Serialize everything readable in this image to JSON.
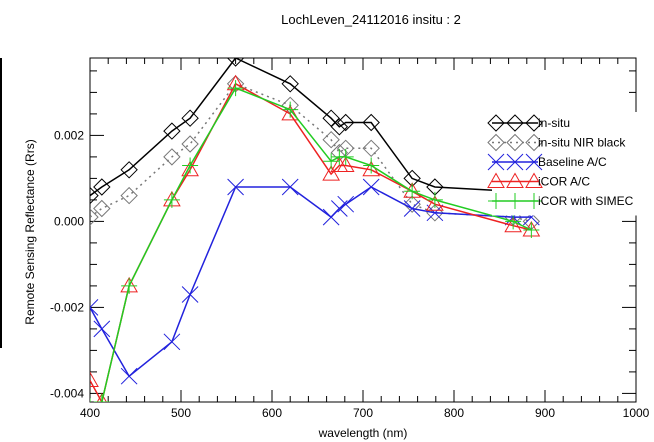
{
  "chart_data": {
    "type": "line",
    "title": "LochLeven_24112016 insitu : 2",
    "xlabel": "wavelength (nm)",
    "ylabel": "Remote Sensing Reflectance (Rrs)",
    "xlim": [
      400,
      1000
    ],
    "ylim": [
      -0.0042,
      0.0038
    ],
    "x_ticks": [
      400,
      500,
      600,
      700,
      800,
      900,
      1000
    ],
    "x_tick_labels": [
      "400",
      "500",
      "600",
      "700",
      "800",
      "900",
      "1000"
    ],
    "y_ticks": [
      -0.004,
      -0.002,
      0.0,
      0.002
    ],
    "y_tick_labels": [
      "-0.004",
      "-0.002",
      "0.000",
      "0.002"
    ],
    "grid": false,
    "legend_position": "right",
    "series": [
      {
        "name": "in-situ",
        "color": "#000000",
        "line": "solid",
        "marker": "diamond",
        "points": [
          [
            400,
            0.0006
          ],
          [
            413,
            0.0008
          ],
          [
            443,
            0.0012
          ],
          [
            490,
            0.0021
          ],
          [
            510,
            0.0024
          ],
          [
            560,
            0.0038
          ],
          [
            620,
            0.0032
          ],
          [
            665,
            0.0024
          ],
          [
            674,
            0.0022
          ],
          [
            681,
            0.0023
          ],
          [
            709,
            0.0023
          ],
          [
            754,
            0.001
          ],
          [
            779,
            0.0008
          ],
          [
            865,
            0.0007
          ],
          [
            885,
            0.0007
          ]
        ]
      },
      {
        "name": "in-situ NIR black",
        "color": "#777777",
        "line": "dotted",
        "marker": "diamond",
        "points": [
          [
            400,
            0.0001
          ],
          [
            413,
            0.0003
          ],
          [
            443,
            0.0006
          ],
          [
            490,
            0.0015
          ],
          [
            510,
            0.0018
          ],
          [
            560,
            0.0032
          ],
          [
            620,
            0.0027
          ],
          [
            665,
            0.0019
          ],
          [
            674,
            0.0016
          ],
          [
            681,
            0.0017
          ],
          [
            709,
            0.0017
          ],
          [
            754,
            0.0004
          ],
          [
            779,
            0.0002
          ],
          [
            865,
            0.0001
          ],
          [
            885,
            0.0
          ]
        ]
      },
      {
        "name": "Baseline A/C",
        "color": "#2222dd",
        "line": "solid",
        "marker": "x",
        "points": [
          [
            400,
            -0.002
          ],
          [
            413,
            -0.0025
          ],
          [
            443,
            -0.0036
          ],
          [
            490,
            -0.0028
          ],
          [
            510,
            -0.0017
          ],
          [
            560,
            0.0008
          ],
          [
            620,
            0.0008
          ],
          [
            665,
            0.0001
          ],
          [
            674,
            0.0003
          ],
          [
            681,
            0.0004
          ],
          [
            709,
            0.0008
          ],
          [
            754,
            0.0003
          ],
          [
            779,
            0.0002
          ],
          [
            865,
            0.0001
          ],
          [
            885,
            0.0001
          ]
        ]
      },
      {
        "name": "iCOR A/C",
        "color": "#ee2222",
        "line": "solid",
        "marker": "triangle",
        "points": [
          [
            400,
            -0.0037
          ],
          [
            413,
            -0.0042
          ],
          [
            443,
            -0.0015
          ],
          [
            490,
            0.0005
          ],
          [
            510,
            0.0012
          ],
          [
            560,
            0.0032
          ],
          [
            620,
            0.0025
          ],
          [
            665,
            0.0011
          ],
          [
            674,
            0.0013
          ],
          [
            681,
            0.0013
          ],
          [
            709,
            0.0012
          ],
          [
            754,
            0.0007
          ],
          [
            779,
            0.0004
          ],
          [
            865,
            -0.0001
          ],
          [
            885,
            -0.0002
          ]
        ]
      },
      {
        "name": "iCOR with SIMEC",
        "color": "#22cc22",
        "line": "solid",
        "marker": "plus",
        "points": [
          [
            400,
            -0.0043
          ],
          [
            413,
            -0.0042
          ],
          [
            443,
            -0.0015
          ],
          [
            490,
            0.0005
          ],
          [
            510,
            0.0013
          ],
          [
            560,
            0.0031
          ],
          [
            620,
            0.0026
          ],
          [
            665,
            0.0014
          ],
          [
            674,
            0.0015
          ],
          [
            681,
            0.0015
          ],
          [
            709,
            0.0013
          ],
          [
            754,
            0.0007
          ],
          [
            779,
            0.0005
          ],
          [
            865,
            0.0
          ],
          [
            885,
            -0.0002
          ]
        ]
      }
    ]
  }
}
